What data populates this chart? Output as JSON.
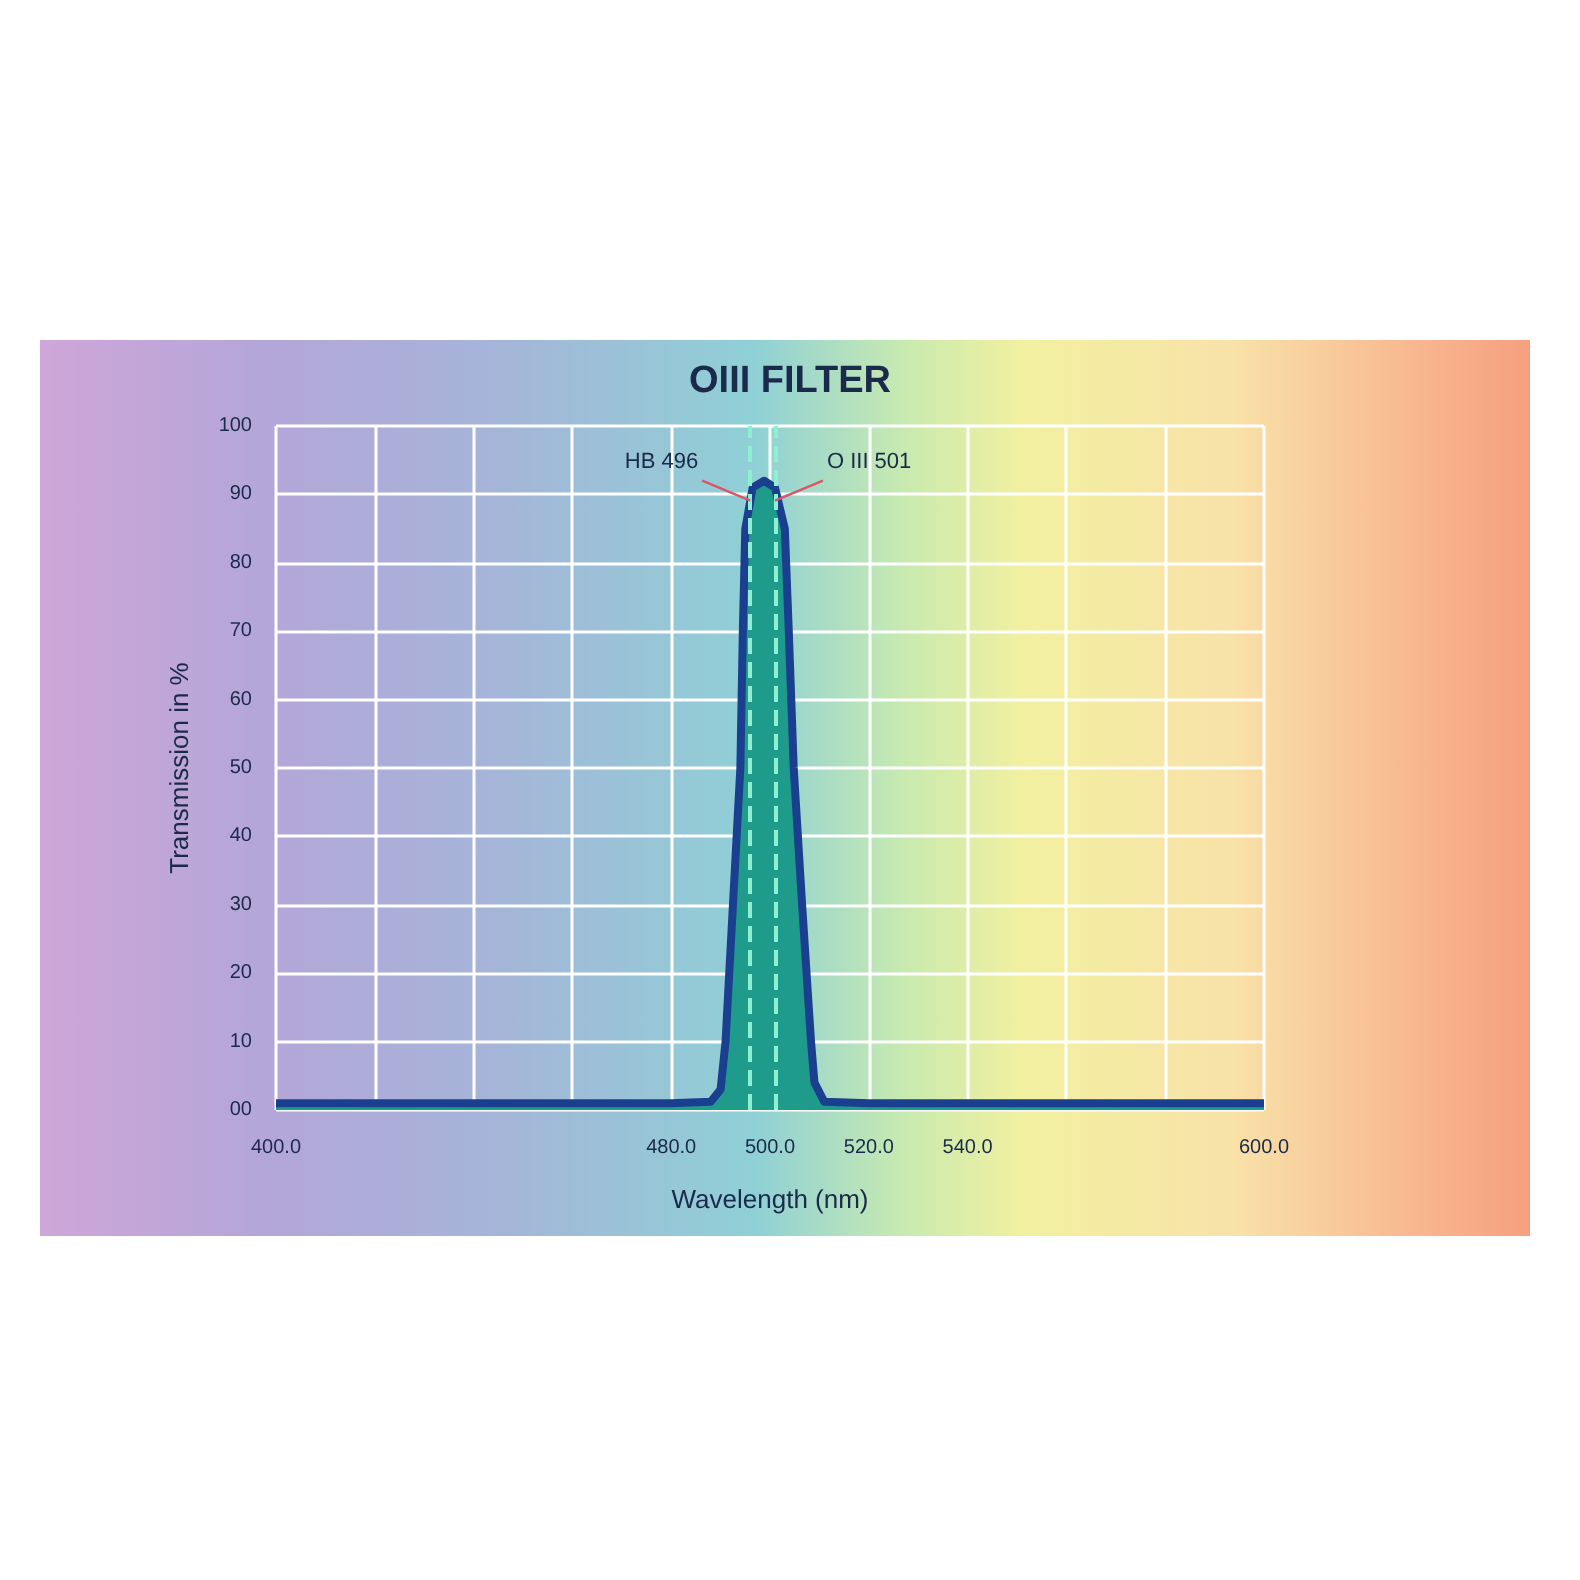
{
  "chart_data": {
    "type": "area",
    "title": "OIII FILTER",
    "xlabel": "Wavelength (nm)",
    "ylabel": "Transmission in %",
    "x": [
      400,
      480,
      488,
      490,
      491,
      492.5,
      494,
      494.5,
      495,
      496.5,
      498.8,
      501,
      503,
      503.8,
      504.8,
      506.5,
      508.3,
      509,
      511,
      520,
      600
    ],
    "series": [
      {
        "color": "#1b3f8f",
        "values": [
          1,
          1,
          1.2,
          3,
          10,
          30,
          50,
          70,
          85,
          91,
          92,
          91,
          85,
          70,
          50,
          30,
          10,
          4,
          1.2,
          1,
          1
        ]
      }
    ],
    "xlim": [
      400,
      600
    ],
    "xticks": [
      {
        "value": 400,
        "label": "400.0"
      },
      {
        "value": 420,
        "label": null
      },
      {
        "value": 440,
        "label": null
      },
      {
        "value": 460,
        "label": null
      },
      {
        "value": 480,
        "label": "480.0"
      },
      {
        "value": 500,
        "label": "500.0"
      },
      {
        "value": 520,
        "label": "520.0"
      },
      {
        "value": 540,
        "label": "540.0"
      },
      {
        "value": 560,
        "label": null
      },
      {
        "value": 580,
        "label": null
      },
      {
        "value": 600,
        "label": "600.0"
      }
    ],
    "ylim": [
      0,
      100
    ],
    "yticks": [
      {
        "value": 0,
        "label": "00"
      },
      10,
      20,
      30,
      40,
      50,
      60,
      70,
      80,
      90,
      100
    ],
    "grid": true,
    "ref_lines": [
      {
        "axis": "x",
        "value": 496,
        "color": "#8ef0d0",
        "line_style": "dashed"
      },
      {
        "axis": "x",
        "value": 501,
        "color": "#8ef0d0",
        "line_style": "dashed"
      }
    ],
    "annotations": [
      {
        "text": "HB 496",
        "x": 496,
        "y": 92
      },
      {
        "text": "O III 501",
        "x": 501,
        "y": 92
      }
    ]
  }
}
